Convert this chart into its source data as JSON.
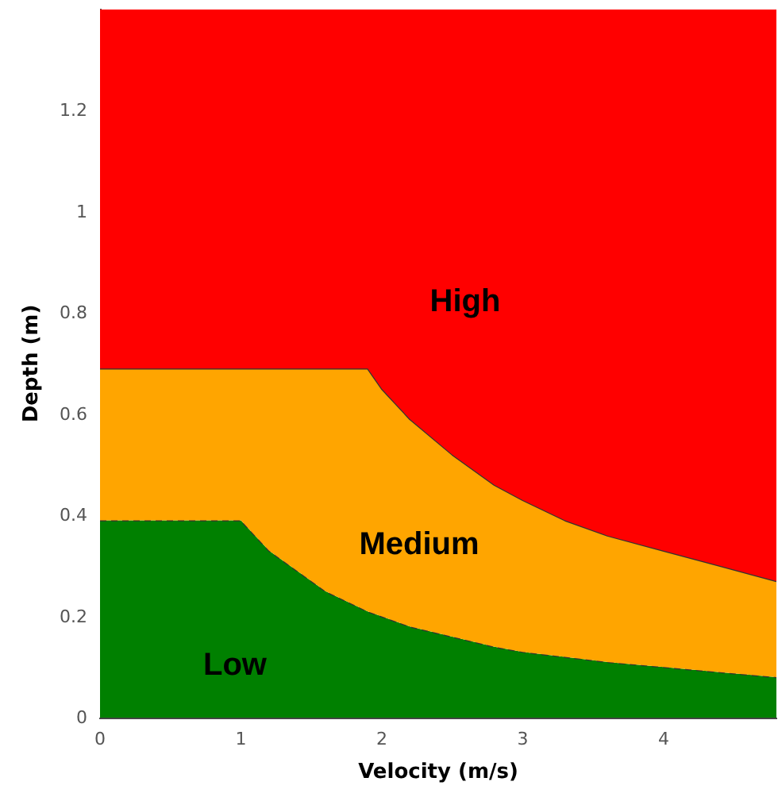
{
  "chart_data": {
    "type": "area",
    "stacked": true,
    "xlabel": "Velocity (m/s)",
    "ylabel": "Depth (m)",
    "x": [
      0,
      1,
      1.1,
      1.2,
      1.4,
      1.6,
      1.9,
      2,
      2.2,
      2.5,
      2.8,
      3,
      3.3,
      3.6,
      4,
      4.4,
      4.8
    ],
    "series": [
      {
        "color": "#008000",
        "line_style": "dashed",
        "values": [
          0.39,
          0.39,
          0.36,
          0.33,
          0.29,
          0.25,
          0.21,
          0.2,
          0.18,
          0.16,
          0.14,
          0.13,
          0.12,
          0.11,
          0.1,
          0.09,
          0.08
        ]
      },
      {
        "color": "#ffa500",
        "line_style": "solid",
        "values": [
          0.3,
          0.3,
          0.33,
          0.36,
          0.4,
          0.44,
          0.48,
          0.45,
          0.41,
          0.36,
          0.32,
          0.3,
          0.27,
          0.25,
          0.23,
          0.21,
          0.19
        ]
      },
      {
        "color": "#ff0000",
        "values": [
          0.71,
          0.71,
          0.71,
          0.71,
          0.71,
          0.71,
          0.71,
          0.75,
          0.81,
          0.88,
          0.94,
          0.97,
          1.01,
          1.04,
          1.07,
          1.1,
          1.13
        ]
      }
    ],
    "annotations": [
      "High",
      "Medium",
      "Low"
    ],
    "xlim": [
      0,
      4.8
    ],
    "xticks": [
      0,
      1,
      2,
      3,
      4
    ],
    "ylim": [
      0,
      1.4
    ],
    "yticks": [
      0,
      0.2,
      0.4,
      0.6,
      0.8,
      1.0,
      1.2
    ]
  }
}
